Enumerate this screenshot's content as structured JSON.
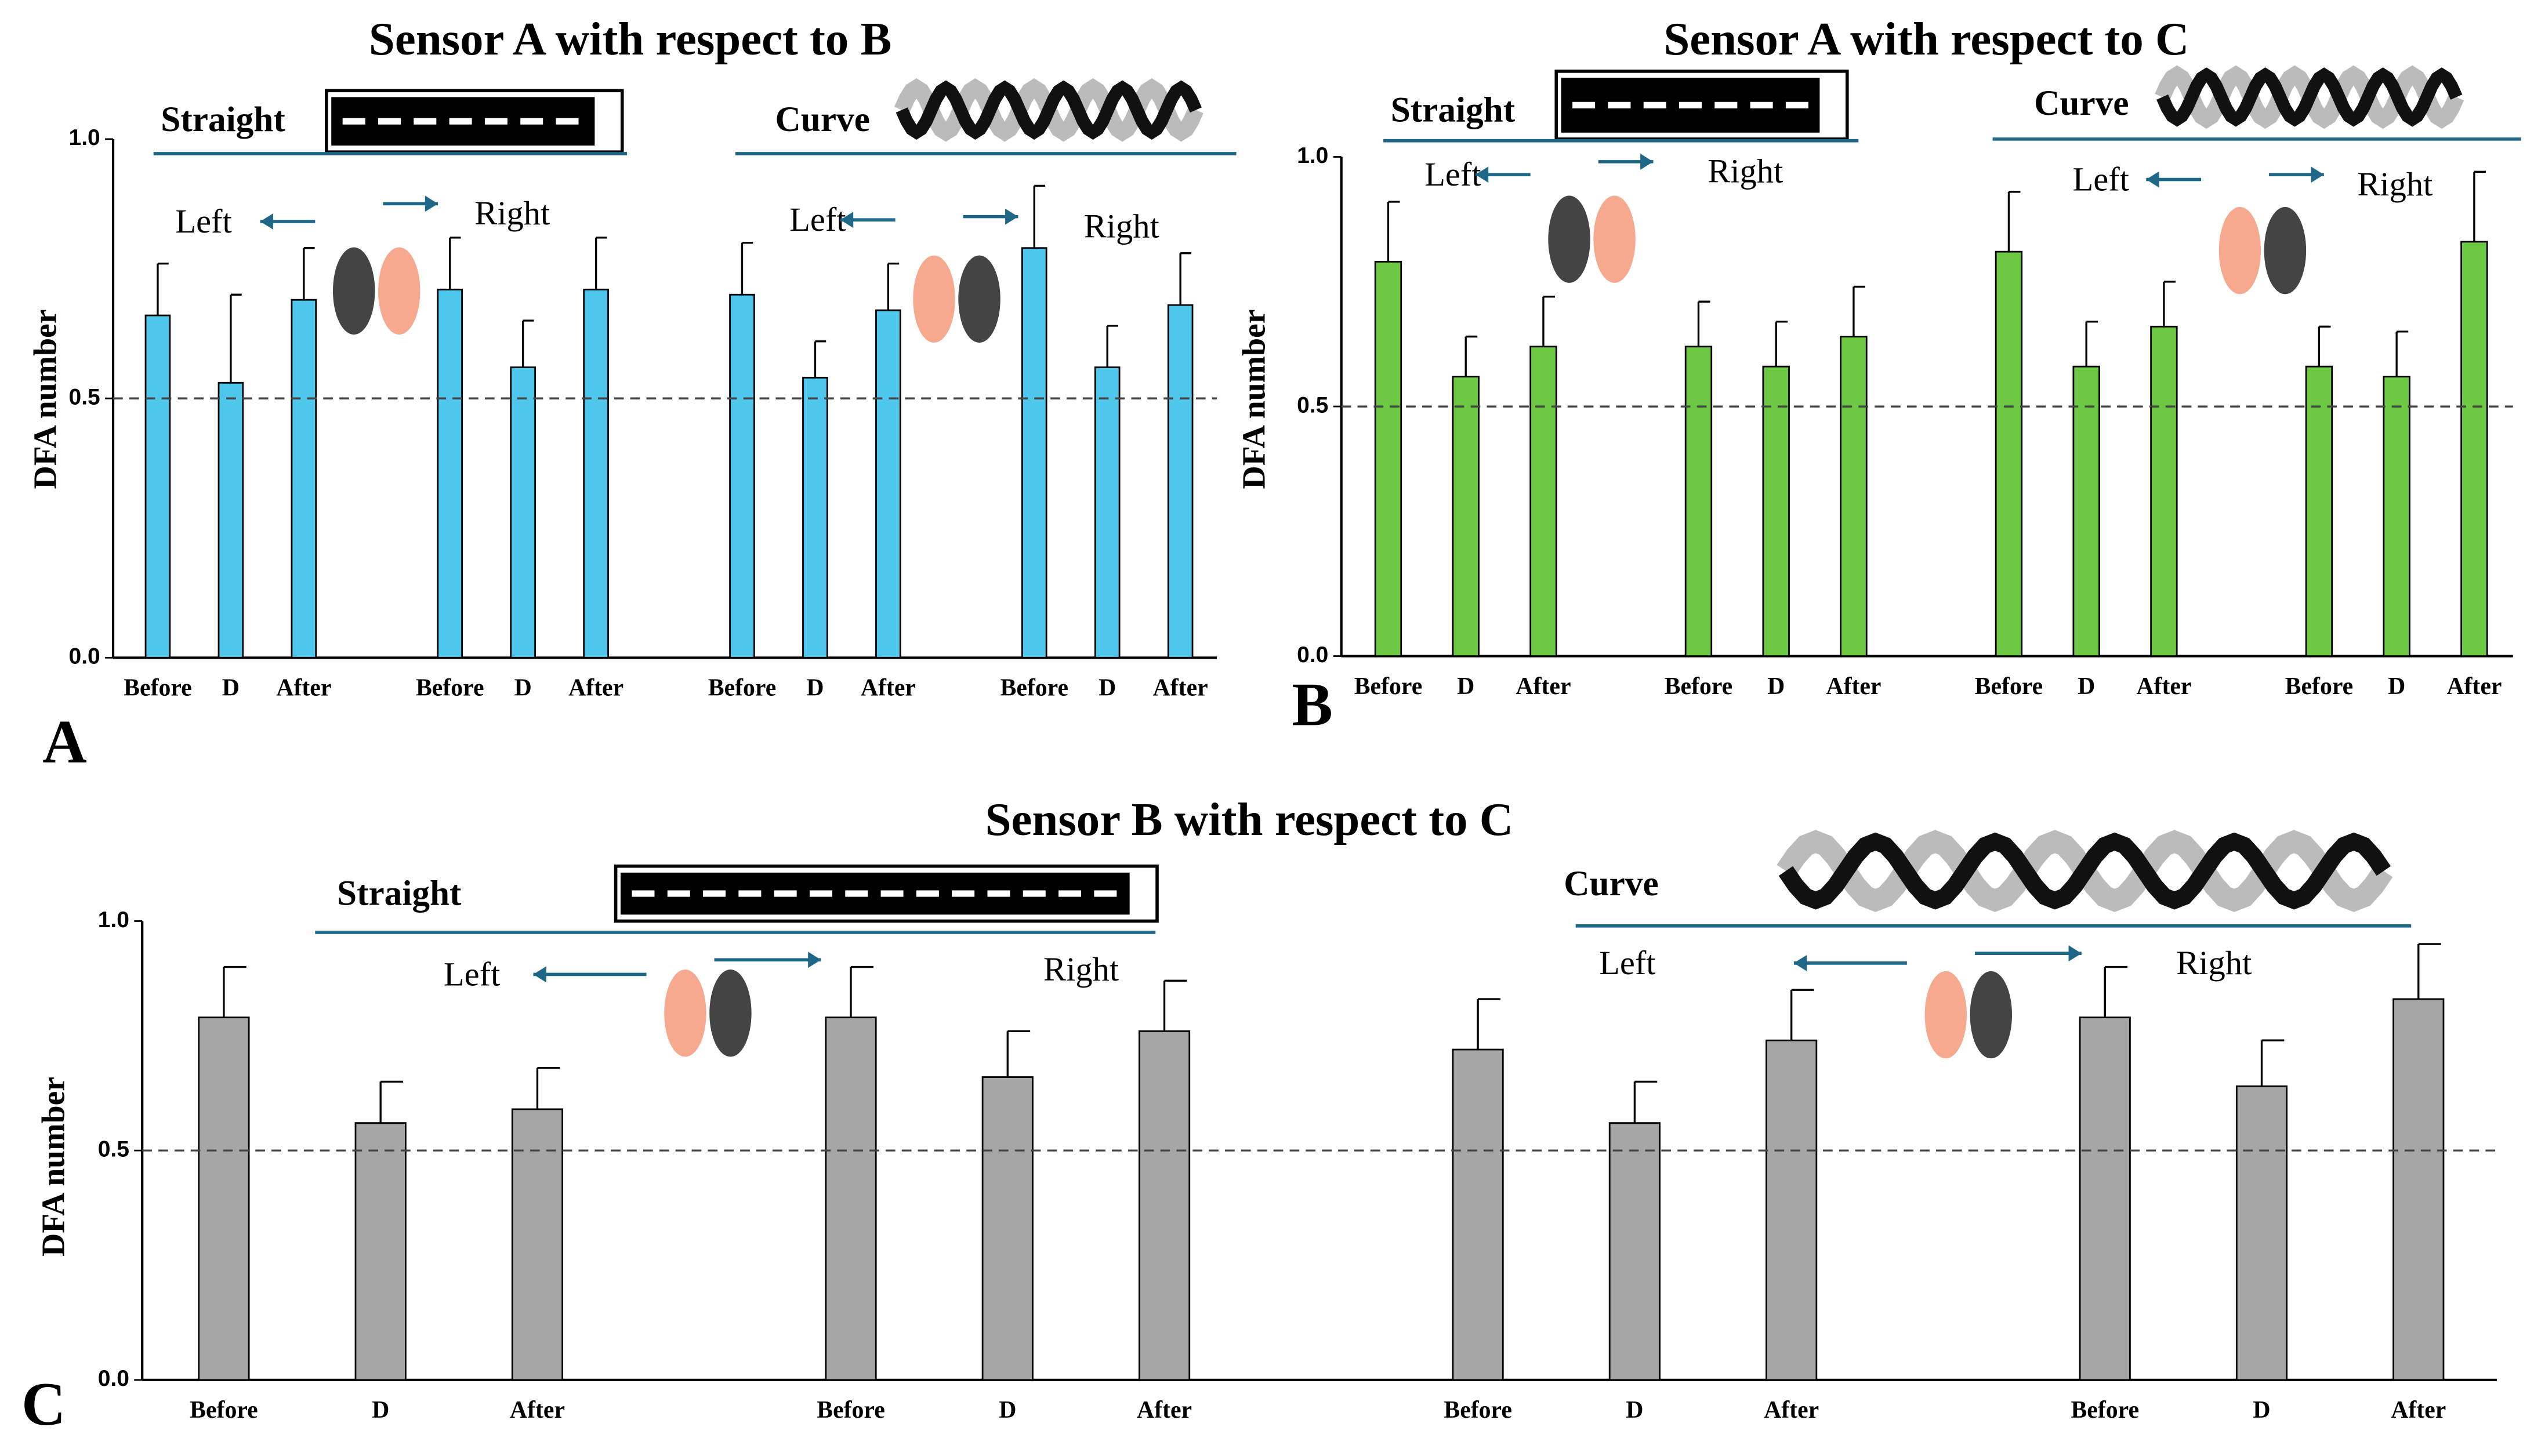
{
  "chart_data": [
    {
      "type": "bar",
      "panel": "A",
      "title": "Sensor A with respect to B",
      "ylabel": "DFA number",
      "groups": [
        "Straight",
        "Curve"
      ],
      "sides": [
        "Left",
        "Right"
      ],
      "categories": [
        "Before",
        "D",
        "After",
        "Before",
        "D",
        "After",
        "Before",
        "D",
        "After",
        "Before",
        "D",
        "After"
      ],
      "values": [
        0.66,
        0.53,
        0.69,
        0.71,
        0.56,
        0.71,
        0.7,
        0.54,
        0.67,
        0.79,
        0.56,
        0.68
      ],
      "errors": [
        0.1,
        0.17,
        0.1,
        0.1,
        0.09,
        0.1,
        0.1,
        0.07,
        0.09,
        0.12,
        0.08,
        0.1
      ],
      "color": "#4fc6ec",
      "ylim": [
        0,
        1
      ],
      "yticks": [
        {
          "value": 0,
          "label": "0.0"
        },
        {
          "value": 0.5,
          "label": "0.5"
        },
        {
          "value": 1,
          "label": "1.0"
        }
      ],
      "reference_line": 0.5
    },
    {
      "type": "bar",
      "panel": "B",
      "title": "Sensor A with respect to C",
      "ylabel": "DFA number",
      "groups": [
        "Straight",
        "Curve"
      ],
      "sides": [
        "Left",
        "Right"
      ],
      "categories": [
        "Before",
        "D",
        "After",
        "Before",
        "D",
        "After",
        "Before",
        "D",
        "After",
        "Before",
        "D",
        "After"
      ],
      "values": [
        0.79,
        0.56,
        0.62,
        0.62,
        0.58,
        0.64,
        0.81,
        0.58,
        0.66,
        0.58,
        0.56,
        0.83
      ],
      "errors": [
        0.12,
        0.08,
        0.1,
        0.09,
        0.09,
        0.1,
        0.12,
        0.09,
        0.09,
        0.08,
        0.09,
        0.14
      ],
      "color": "#6dc943",
      "ylim": [
        0,
        1
      ],
      "yticks": [
        {
          "value": 0,
          "label": "0.0"
        },
        {
          "value": 0.5,
          "label": "0.5"
        },
        {
          "value": 1,
          "label": "1.0"
        }
      ],
      "reference_line": 0.5
    },
    {
      "type": "bar",
      "panel": "C",
      "title": "Sensor B with respect to C",
      "ylabel": "DFA number",
      "groups": [
        "Straight",
        "Curve"
      ],
      "sides": [
        "Left",
        "Right"
      ],
      "categories": [
        "Before",
        "D",
        "After",
        "Before",
        "D",
        "After",
        "Before",
        "D",
        "After",
        "Before",
        "D",
        "After"
      ],
      "values": [
        0.79,
        0.56,
        0.59,
        0.79,
        0.66,
        0.76,
        0.72,
        0.56,
        0.74,
        0.79,
        0.64,
        0.83
      ],
      "errors": [
        0.11,
        0.09,
        0.09,
        0.11,
        0.1,
        0.11,
        0.11,
        0.09,
        0.11,
        0.11,
        0.1,
        0.12
      ],
      "color": "#a6a6a6",
      "ylim": [
        0,
        1
      ],
      "yticks": [
        {
          "value": 0,
          "label": "0.0"
        },
        {
          "value": 0.5,
          "label": "0.5"
        },
        {
          "value": 1,
          "label": "1.0"
        }
      ],
      "reference_line": 0.5
    }
  ]
}
